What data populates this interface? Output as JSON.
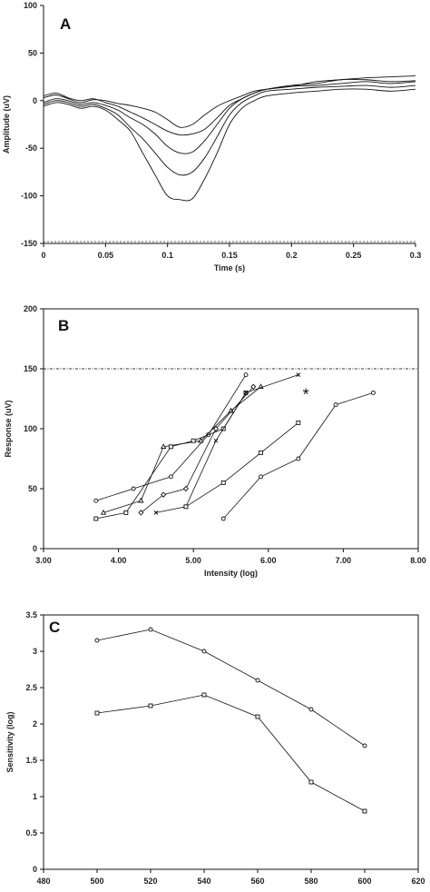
{
  "chart_data": [
    {
      "type": "line",
      "panel_label": "A",
      "xlabel": "Time (s)",
      "ylabel": "Amplitude (uV)",
      "xlim": [
        0,
        0.3
      ],
      "ylim": [
        -150,
        100
      ],
      "x_ticks": [
        "0",
        "0.05",
        "0.1",
        "0.15",
        "0.2",
        "0.25",
        "0.3"
      ],
      "y_ticks": [
        "100",
        "50",
        "0",
        "-50",
        "-100",
        "-150"
      ],
      "series": [
        {
          "x": [
            0,
            0.01,
            0.02,
            0.03,
            0.04,
            0.05,
            0.06,
            0.07,
            0.08,
            0.09,
            0.1,
            0.11,
            0.12,
            0.13,
            0.14,
            0.15,
            0.16,
            0.17,
            0.18,
            0.2,
            0.22,
            0.24,
            0.26,
            0.28,
            0.3
          ],
          "y": [
            3,
            6,
            2,
            -2,
            1,
            0,
            -3,
            -5,
            -8,
            -12,
            -20,
            -28,
            -25,
            -15,
            -6,
            0,
            5,
            10,
            12,
            15,
            20,
            22,
            24,
            25,
            26
          ]
        },
        {
          "x": [
            0,
            0.01,
            0.02,
            0.03,
            0.04,
            0.05,
            0.06,
            0.07,
            0.08,
            0.09,
            0.1,
            0.11,
            0.12,
            0.13,
            0.14,
            0.15,
            0.16,
            0.17,
            0.18,
            0.2,
            0.22,
            0.24,
            0.26,
            0.28,
            0.3
          ],
          "y": [
            5,
            8,
            3,
            0,
            2,
            -2,
            -6,
            -12,
            -18,
            -25,
            -32,
            -36,
            -35,
            -30,
            -18,
            -5,
            2,
            8,
            12,
            16,
            18,
            22,
            22,
            20,
            21
          ]
        },
        {
          "x": [
            0,
            0.01,
            0.02,
            0.03,
            0.04,
            0.05,
            0.06,
            0.07,
            0.08,
            0.09,
            0.1,
            0.11,
            0.12,
            0.13,
            0.14,
            0.15,
            0.16,
            0.17,
            0.18,
            0.2,
            0.22,
            0.24,
            0.26,
            0.28,
            0.3
          ],
          "y": [
            -2,
            2,
            0,
            -4,
            -2,
            -5,
            -10,
            -18,
            -25,
            -35,
            -48,
            -55,
            -54,
            -42,
            -25,
            -8,
            2,
            8,
            12,
            15,
            16,
            18,
            20,
            18,
            20
          ]
        },
        {
          "x": [
            0,
            0.01,
            0.02,
            0.03,
            0.04,
            0.05,
            0.06,
            0.07,
            0.08,
            0.09,
            0.1,
            0.11,
            0.12,
            0.13,
            0.14,
            0.15,
            0.16,
            0.17,
            0.18,
            0.2,
            0.22,
            0.24,
            0.26,
            0.28,
            0.3
          ],
          "y": [
            -4,
            0,
            -2,
            -6,
            -4,
            -8,
            -15,
            -28,
            -40,
            -55,
            -70,
            -78,
            -75,
            -60,
            -38,
            -15,
            -2,
            5,
            10,
            12,
            14,
            15,
            16,
            14,
            16
          ]
        },
        {
          "x": [
            0,
            0.01,
            0.02,
            0.03,
            0.04,
            0.05,
            0.06,
            0.07,
            0.08,
            0.09,
            0.1,
            0.11,
            0.12,
            0.13,
            0.14,
            0.15,
            0.16,
            0.17,
            0.18,
            0.2,
            0.22,
            0.24,
            0.26,
            0.28,
            0.3
          ],
          "y": [
            -6,
            -2,
            -4,
            -8,
            -6,
            -10,
            -20,
            -32,
            -55,
            -78,
            -100,
            -104,
            -103,
            -82,
            -55,
            -25,
            -8,
            0,
            5,
            8,
            10,
            12,
            12,
            10,
            12
          ]
        }
      ]
    },
    {
      "type": "line",
      "panel_label": "B",
      "xlabel": "Intensity (log)",
      "ylabel": "Response (uV)",
      "xlim": [
        3.0,
        8.0
      ],
      "ylim": [
        0,
        200
      ],
      "x_ticks": [
        "3.00",
        "4.00",
        "5.00",
        "6.00",
        "7.00",
        "8.00"
      ],
      "y_ticks": [
        "200",
        "150",
        "100",
        "50",
        "0"
      ],
      "reference_line": 150,
      "annotation": "*",
      "series": [
        {
          "marker": "circle",
          "x": [
            3.7,
            4.2,
            4.7,
            5.2,
            5.7
          ],
          "y": [
            40,
            50,
            60,
            95,
            145
          ]
        },
        {
          "marker": "triangle",
          "x": [
            3.8,
            4.3,
            4.6,
            5.1,
            5.5,
            5.9
          ],
          "y": [
            30,
            40,
            85,
            90,
            115,
            135
          ]
        },
        {
          "marker": "diamond",
          "x": [
            4.3,
            4.6,
            4.9,
            5.3,
            5.8
          ],
          "y": [
            30,
            45,
            50,
            100,
            135
          ]
        },
        {
          "marker": "square",
          "x": [
            3.7,
            4.1,
            4.7,
            5.0,
            5.4,
            5.7
          ],
          "y": [
            25,
            30,
            85,
            90,
            100,
            130
          ]
        },
        {
          "marker": "x",
          "x": [
            4.5,
            4.9,
            5.3,
            5.7,
            6.4
          ],
          "y": [
            30,
            35,
            90,
            130,
            145
          ]
        },
        {
          "marker": "square",
          "x": [
            4.9,
            5.4,
            5.9,
            6.4
          ],
          "y": [
            35,
            55,
            80,
            105
          ]
        },
        {
          "marker": "circle",
          "x": [
            5.4,
            5.9,
            6.4,
            6.9,
            7.4
          ],
          "y": [
            25,
            60,
            75,
            120,
            130
          ]
        }
      ]
    },
    {
      "type": "line",
      "panel_label": "C",
      "xlabel": "Wavelength (nm)",
      "ylabel": "Sensitivity (log)",
      "xlim": [
        480,
        620
      ],
      "ylim": [
        0,
        3.5
      ],
      "x_ticks": [
        "480",
        "500",
        "520",
        "540",
        "560",
        "580",
        "600",
        "620"
      ],
      "y_ticks": [
        "3.5",
        "3",
        "2.5",
        "2",
        "1.5",
        "1",
        "0.5",
        "0"
      ],
      "series": [
        {
          "marker": "circle",
          "x": [
            500,
            520,
            540,
            560,
            580,
            600
          ],
          "y": [
            3.15,
            3.3,
            3.0,
            2.6,
            2.2,
            1.7
          ]
        },
        {
          "marker": "square",
          "x": [
            500,
            520,
            540,
            560,
            580,
            600
          ],
          "y": [
            2.15,
            2.25,
            2.4,
            2.1,
            1.2,
            0.8
          ]
        }
      ]
    }
  ]
}
